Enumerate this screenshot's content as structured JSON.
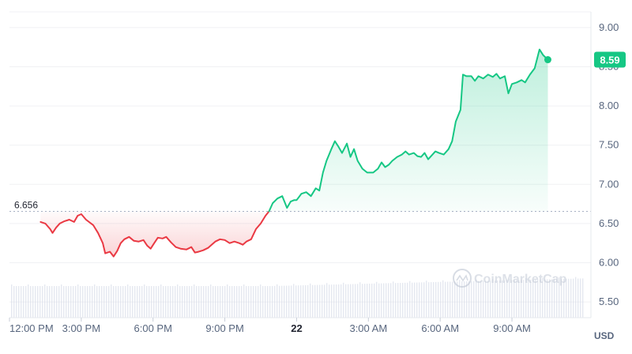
{
  "chart_data": {
    "type": "area",
    "currency_label": "USD",
    "watermark": "CoinMarketCap",
    "baseline": {
      "value": 6.656,
      "label": "6.656"
    },
    "current": {
      "value": 8.59,
      "label": "8.59"
    },
    "ylim": [
      5.3,
      9.2
    ],
    "y_ticks": [
      {
        "value": 5.5,
        "label": "5.50"
      },
      {
        "value": 6.0,
        "label": "6.00"
      },
      {
        "value": 6.5,
        "label": "6.50"
      },
      {
        "value": 7.0,
        "label": "7.00"
      },
      {
        "value": 7.5,
        "label": "7.50"
      },
      {
        "value": 8.0,
        "label": "8.00"
      },
      {
        "value": 8.5,
        "label": "8.50"
      },
      {
        "value": 9.0,
        "label": "9.00"
      }
    ],
    "xlim": [
      0,
      24.3
    ],
    "x_ticks": [
      {
        "value": 0,
        "label": "12:00 PM"
      },
      {
        "value": 3,
        "label": "3:00 PM"
      },
      {
        "value": 6,
        "label": "6:00 PM"
      },
      {
        "value": 9,
        "label": "9:00 PM"
      },
      {
        "value": 12,
        "label": "22",
        "bold": true
      },
      {
        "value": 15,
        "label": "3:00 AM"
      },
      {
        "value": 18,
        "label": "6:00 AM"
      },
      {
        "value": 21,
        "label": "9:00 AM"
      }
    ],
    "x_unit": "hours since 12:00 PM",
    "colors": {
      "up": "#16c784",
      "down": "#ea3943",
      "grid": "#f0f1f4",
      "axis_text": "#58667e",
      "volume": "#cfd6e4"
    },
    "series": [
      {
        "values": [
          [
            1.3,
            6.52
          ],
          [
            1.5,
            6.5
          ],
          [
            1.7,
            6.43
          ],
          [
            1.8,
            6.38
          ],
          [
            1.95,
            6.45
          ],
          [
            2.1,
            6.5
          ],
          [
            2.3,
            6.53
          ],
          [
            2.5,
            6.55
          ],
          [
            2.7,
            6.52
          ],
          [
            2.85,
            6.6
          ],
          [
            3.0,
            6.62
          ],
          [
            3.2,
            6.55
          ],
          [
            3.5,
            6.48
          ],
          [
            3.7,
            6.38
          ],
          [
            3.9,
            6.25
          ],
          [
            4.0,
            6.12
          ],
          [
            4.2,
            6.14
          ],
          [
            4.35,
            6.08
          ],
          [
            4.5,
            6.15
          ],
          [
            4.65,
            6.25
          ],
          [
            4.8,
            6.3
          ],
          [
            5.0,
            6.33
          ],
          [
            5.2,
            6.28
          ],
          [
            5.4,
            6.27
          ],
          [
            5.6,
            6.29
          ],
          [
            5.75,
            6.22
          ],
          [
            5.9,
            6.18
          ],
          [
            6.05,
            6.25
          ],
          [
            6.2,
            6.32
          ],
          [
            6.4,
            6.31
          ],
          [
            6.55,
            6.33
          ],
          [
            6.75,
            6.26
          ],
          [
            6.95,
            6.2
          ],
          [
            7.15,
            6.18
          ],
          [
            7.4,
            6.17
          ],
          [
            7.6,
            6.2
          ],
          [
            7.75,
            6.13
          ],
          [
            7.9,
            6.14
          ],
          [
            8.1,
            6.16
          ],
          [
            8.3,
            6.19
          ],
          [
            8.45,
            6.23
          ],
          [
            8.6,
            6.27
          ],
          [
            8.8,
            6.3
          ],
          [
            9.0,
            6.29
          ],
          [
            9.2,
            6.25
          ],
          [
            9.4,
            6.27
          ],
          [
            9.6,
            6.25
          ],
          [
            9.75,
            6.23
          ],
          [
            9.9,
            6.27
          ],
          [
            10.1,
            6.3
          ],
          [
            10.3,
            6.43
          ],
          [
            10.5,
            6.5
          ],
          [
            10.7,
            6.6
          ],
          [
            10.85,
            6.656
          ]
        ]
      },
      {
        "values": [
          [
            10.85,
            6.656
          ],
          [
            11.0,
            6.76
          ],
          [
            11.2,
            6.82
          ],
          [
            11.4,
            6.85
          ],
          [
            11.6,
            6.7
          ],
          [
            11.75,
            6.78
          ],
          [
            11.9,
            6.8
          ],
          [
            12.0,
            6.8
          ],
          [
            12.2,
            6.88
          ],
          [
            12.4,
            6.9
          ],
          [
            12.6,
            6.85
          ],
          [
            12.8,
            6.95
          ],
          [
            12.95,
            6.92
          ],
          [
            13.1,
            7.15
          ],
          [
            13.25,
            7.3
          ],
          [
            13.45,
            7.45
          ],
          [
            13.6,
            7.55
          ],
          [
            13.75,
            7.48
          ],
          [
            13.9,
            7.4
          ],
          [
            14.1,
            7.52
          ],
          [
            14.25,
            7.35
          ],
          [
            14.4,
            7.45
          ],
          [
            14.55,
            7.3
          ],
          [
            14.75,
            7.2
          ],
          [
            14.95,
            7.15
          ],
          [
            15.2,
            7.15
          ],
          [
            15.4,
            7.2
          ],
          [
            15.55,
            7.28
          ],
          [
            15.7,
            7.22
          ],
          [
            15.85,
            7.25
          ],
          [
            16.0,
            7.3
          ],
          [
            16.2,
            7.35
          ],
          [
            16.4,
            7.38
          ],
          [
            16.55,
            7.42
          ],
          [
            16.7,
            7.38
          ],
          [
            16.9,
            7.4
          ],
          [
            17.05,
            7.36
          ],
          [
            17.2,
            7.35
          ],
          [
            17.35,
            7.4
          ],
          [
            17.5,
            7.32
          ],
          [
            17.65,
            7.37
          ],
          [
            17.8,
            7.42
          ],
          [
            17.95,
            7.4
          ],
          [
            18.15,
            7.38
          ],
          [
            18.35,
            7.45
          ],
          [
            18.5,
            7.55
          ],
          [
            18.65,
            7.8
          ],
          [
            18.85,
            7.95
          ],
          [
            18.95,
            8.4
          ],
          [
            19.1,
            8.38
          ],
          [
            19.3,
            8.38
          ],
          [
            19.45,
            8.32
          ],
          [
            19.6,
            8.38
          ],
          [
            19.8,
            8.35
          ],
          [
            20.0,
            8.4
          ],
          [
            20.2,
            8.37
          ],
          [
            20.35,
            8.41
          ],
          [
            20.5,
            8.35
          ],
          [
            20.7,
            8.38
          ],
          [
            20.85,
            8.16
          ],
          [
            21.0,
            8.28
          ],
          [
            21.2,
            8.3
          ],
          [
            21.4,
            8.33
          ],
          [
            21.55,
            8.3
          ],
          [
            21.75,
            8.4
          ],
          [
            21.95,
            8.48
          ],
          [
            22.15,
            8.72
          ],
          [
            22.3,
            8.65
          ],
          [
            22.5,
            8.59
          ]
        ]
      }
    ]
  }
}
